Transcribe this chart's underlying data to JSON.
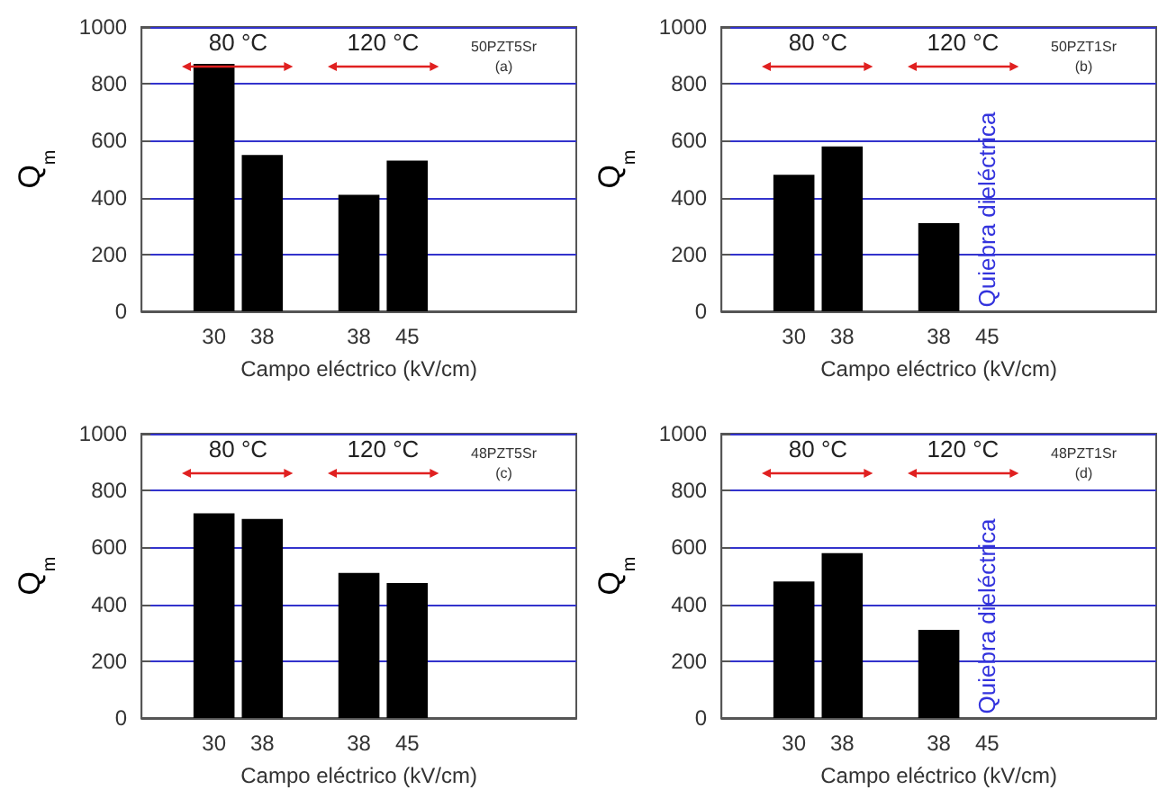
{
  "chart_data": [
    {
      "type": "bar",
      "categories": [
        null,
        "30",
        "38",
        null,
        "38",
        "45",
        null,
        null,
        null
      ],
      "values": [
        null,
        870,
        550,
        null,
        410,
        530,
        null,
        null,
        null
      ],
      "color": "#000000",
      "xlabel": "Campo eléctrico (kV/cm)",
      "ylabel": "Q$_{m}$",
      "ylim": [
        0,
        1000
      ],
      "yticks": [
        0,
        200,
        400,
        600,
        800,
        1000
      ],
      "grid": "y",
      "annotations": [
        "80 °C",
        "120 °C",
        "50PZT5Sr",
        "(a)"
      ]
    },
    {
      "type": "bar",
      "categories": [
        null,
        "30",
        "38",
        null,
        "38",
        "45",
        null,
        null,
        null
      ],
      "values": [
        null,
        480,
        580,
        null,
        310,
        null,
        null,
        null,
        null
      ],
      "color": "#000000",
      "xlabel": "Campo eléctrico (kV/cm)",
      "ylabel": "Q$_{m}$",
      "ylim": [
        0,
        1000
      ],
      "yticks": [
        0,
        200,
        400,
        600,
        800,
        1000
      ],
      "grid": "y",
      "annotations": [
        "80 °C",
        "120 °C",
        "50PZT1Sr",
        "(b)",
        "Quiebra dieléctrica"
      ]
    },
    {
      "type": "bar",
      "categories": [
        null,
        "30",
        "38",
        null,
        "38",
        "45",
        null,
        null,
        null
      ],
      "values": [
        null,
        720,
        700,
        null,
        510,
        475,
        null,
        null,
        null
      ],
      "color": "#000000",
      "xlabel": "Campo eléctrico (kV/cm)",
      "ylabel": "Q$_{m}$",
      "ylim": [
        0,
        1000
      ],
      "yticks": [
        0,
        200,
        400,
        600,
        800,
        1000
      ],
      "grid": "y",
      "annotations": [
        "80 °C",
        "120 °C",
        "48PZT5Sr",
        "(c)"
      ]
    },
    {
      "type": "bar",
      "categories": [
        null,
        "30",
        "38",
        null,
        "38",
        "45",
        null,
        null,
        null
      ],
      "values": [
        null,
        480,
        580,
        null,
        310,
        null,
        null,
        null,
        null
      ],
      "color": "#000000",
      "xlabel": "Campo eléctrico (kV/cm)",
      "ylabel": "Q$_{m}$",
      "ylim": [
        0,
        1000
      ],
      "yticks": [
        0,
        200,
        400,
        600,
        800,
        1000
      ],
      "grid": "y",
      "annotations": [
        "80 °C",
        "120 °C",
        "48PZT1Sr",
        "(d)",
        "Quiebra dieléctrica"
      ]
    }
  ]
}
